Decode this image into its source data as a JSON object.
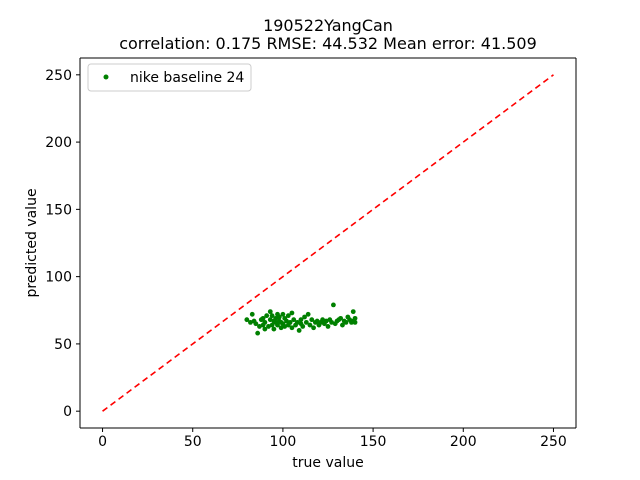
{
  "chart_data": {
    "type": "scatter",
    "title": "190522YangCan",
    "subtitle": "correlation: 0.175   RMSE: 44.532  Mean error: 41.509",
    "xlabel": "true value",
    "ylabel": "predicted value",
    "xlim": [
      -12.5,
      262.5
    ],
    "ylim": [
      -12.5,
      262.5
    ],
    "xticks": [
      0,
      50,
      100,
      150,
      200,
      250
    ],
    "yticks": [
      0,
      50,
      100,
      150,
      200,
      250
    ],
    "grid": false,
    "legend_position": "top-left",
    "series": [
      {
        "name": "nike baseline 24",
        "kind": "scatter",
        "color": "#008000",
        "points": [
          [
            80,
            68
          ],
          [
            82,
            66
          ],
          [
            83,
            72
          ],
          [
            84,
            67
          ],
          [
            85,
            65
          ],
          [
            86,
            58
          ],
          [
            87,
            63
          ],
          [
            88,
            68
          ],
          [
            89,
            64
          ],
          [
            89,
            69
          ],
          [
            90,
            61
          ],
          [
            90,
            66
          ],
          [
            91,
            71
          ],
          [
            92,
            63
          ],
          [
            93,
            68
          ],
          [
            93,
            74
          ],
          [
            94,
            64
          ],
          [
            94,
            71
          ],
          [
            95,
            67
          ],
          [
            95,
            61
          ],
          [
            96,
            69
          ],
          [
            96,
            66
          ],
          [
            97,
            72
          ],
          [
            97,
            64
          ],
          [
            98,
            67
          ],
          [
            98,
            70
          ],
          [
            99,
            62
          ],
          [
            99,
            66
          ],
          [
            100,
            72
          ],
          [
            100,
            65
          ],
          [
            101,
            69
          ],
          [
            101,
            63
          ],
          [
            102,
            67
          ],
          [
            103,
            71
          ],
          [
            103,
            64
          ],
          [
            104,
            66
          ],
          [
            105,
            73
          ],
          [
            105,
            62
          ],
          [
            106,
            68
          ],
          [
            107,
            64
          ],
          [
            108,
            66
          ],
          [
            109,
            60
          ],
          [
            110,
            65
          ],
          [
            110,
            68
          ],
          [
            111,
            63
          ],
          [
            112,
            70
          ],
          [
            113,
            66
          ],
          [
            114,
            72
          ],
          [
            115,
            64
          ],
          [
            116,
            68
          ],
          [
            117,
            62
          ],
          [
            118,
            66
          ],
          [
            119,
            67
          ],
          [
            120,
            64
          ],
          [
            121,
            66
          ],
          [
            122,
            68
          ],
          [
            123,
            65
          ],
          [
            124,
            67
          ],
          [
            125,
            63
          ],
          [
            126,
            68
          ],
          [
            127,
            66
          ],
          [
            128,
            79
          ],
          [
            129,
            65
          ],
          [
            130,
            67
          ],
          [
            131,
            68
          ],
          [
            132,
            69
          ],
          [
            133,
            64
          ],
          [
            134,
            67
          ],
          [
            135,
            66
          ],
          [
            136,
            70
          ],
          [
            137,
            68
          ],
          [
            138,
            66
          ],
          [
            139,
            74
          ],
          [
            139,
            67
          ],
          [
            140,
            69
          ],
          [
            140,
            66
          ]
        ]
      },
      {
        "kind": "line",
        "style": "dashed",
        "color": "#ff0000",
        "x": [
          0,
          250
        ],
        "y": [
          0,
          250
        ]
      }
    ]
  }
}
